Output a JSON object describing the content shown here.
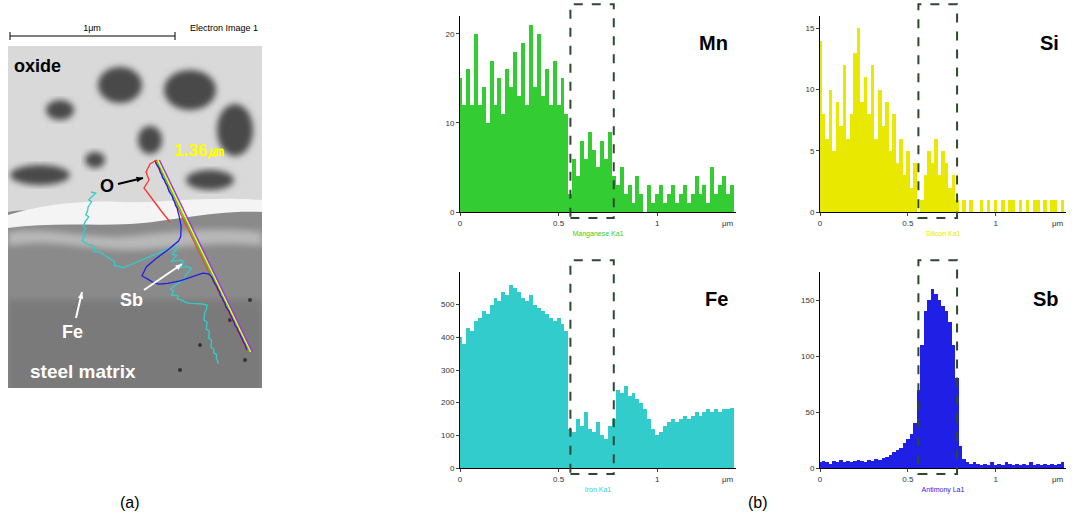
{
  "panels": [
    "(a)",
    "(b)"
  ],
  "micrograph": {
    "scale_bar": "1μm",
    "caption": "Electron Image 1",
    "scan_length": "1.36㎛",
    "labels": {
      "oxide": "oxide",
      "O": "O",
      "Fe": "Fe",
      "Sb": "Sb",
      "matrix": "steel matrix"
    }
  },
  "chart_data": [
    {
      "type": "bar",
      "label": "Mn",
      "color": "#33cc33",
      "xlabel": "Manganese Ka1",
      "x_unit": "μm",
      "x": [
        0,
        0.02,
        0.04,
        0.06,
        0.08,
        0.1,
        0.12,
        0.14,
        0.16,
        0.18,
        0.2,
        0.22,
        0.24,
        0.26,
        0.28,
        0.3,
        0.32,
        0.34,
        0.36,
        0.38,
        0.4,
        0.42,
        0.44,
        0.46,
        0.48,
        0.5,
        0.52,
        0.54,
        0.56,
        0.58,
        0.6,
        0.62,
        0.64,
        0.66,
        0.68,
        0.7,
        0.72,
        0.74,
        0.76,
        0.78,
        0.8,
        0.82,
        0.84,
        0.86,
        0.88,
        0.9,
        0.92,
        0.94,
        0.96,
        0.98,
        1,
        1.02,
        1.04,
        1.06,
        1.08,
        1.1,
        1.12,
        1.14,
        1.16,
        1.18,
        1.2,
        1.22,
        1.24,
        1.26,
        1.28,
        1.3,
        1.32,
        1.34,
        1.36,
        1.38
      ],
      "values": [
        15,
        12,
        16,
        12,
        20,
        12,
        14,
        10,
        17,
        12,
        15,
        11,
        16,
        14,
        18,
        13,
        19,
        12,
        21,
        14,
        20,
        13,
        16,
        12,
        17,
        12,
        15,
        11,
        2,
        6,
        4,
        8,
        6,
        9,
        7,
        5,
        8,
        6,
        9,
        4,
        3,
        5,
        2,
        3,
        1,
        4,
        2,
        0,
        3,
        1,
        2,
        3,
        1,
        2,
        3,
        1,
        2,
        3,
        1,
        2,
        4,
        2,
        3,
        1,
        5,
        2,
        3,
        4,
        2,
        3
      ],
      "xlim": [
        0,
        1.4
      ],
      "xticks": [
        0,
        0.5,
        1
      ],
      "ylim": [
        0,
        22
      ],
      "yticks": [
        0,
        10,
        20
      ],
      "highlight_x": [
        0.56,
        0.78
      ]
    },
    {
      "type": "bar",
      "label": "Si",
      "color": "#e8e800",
      "xlabel": "Silicon Ka1",
      "x_unit": "μm",
      "x": [
        0,
        0.02,
        0.04,
        0.06,
        0.08,
        0.1,
        0.12,
        0.14,
        0.16,
        0.18,
        0.2,
        0.22,
        0.24,
        0.26,
        0.28,
        0.3,
        0.32,
        0.34,
        0.36,
        0.38,
        0.4,
        0.42,
        0.44,
        0.46,
        0.48,
        0.5,
        0.52,
        0.54,
        0.56,
        0.58,
        0.6,
        0.62,
        0.64,
        0.66,
        0.68,
        0.7,
        0.72,
        0.74,
        0.76,
        0.78,
        0.8,
        0.82,
        0.84,
        0.86,
        0.88,
        0.9,
        0.92,
        0.94,
        0.96,
        0.98,
        1,
        1.02,
        1.04,
        1.06,
        1.08,
        1.1,
        1.12,
        1.14,
        1.16,
        1.18,
        1.2,
        1.22,
        1.24,
        1.26,
        1.28,
        1.3,
        1.32,
        1.34,
        1.36,
        1.38
      ],
      "values": [
        14,
        8,
        6,
        10,
        5,
        9,
        7,
        12,
        6,
        8,
        13,
        15,
        9,
        11,
        8,
        12,
        6,
        10,
        7,
        9,
        5,
        8,
        4,
        6,
        3,
        5,
        2,
        4,
        0,
        1,
        3,
        5,
        4,
        6,
        3,
        5,
        4,
        2,
        3,
        1,
        0,
        1,
        0,
        1,
        0,
        0,
        1,
        0,
        1,
        0,
        1,
        0,
        1,
        0,
        1,
        1,
        0,
        1,
        0,
        1,
        0,
        1,
        1,
        0,
        1,
        0,
        1,
        1,
        0,
        1
      ],
      "xlim": [
        0,
        1.4
      ],
      "xticks": [
        0,
        0.5,
        1
      ],
      "ylim": [
        0,
        16
      ],
      "yticks": [
        0,
        5,
        10,
        15
      ],
      "highlight_x": [
        0.56,
        0.78
      ]
    },
    {
      "type": "bar",
      "label": "Fe",
      "color": "#33cccc",
      "xlabel": "Iron Ka1",
      "x_unit": "μm",
      "x": [
        0,
        0.02,
        0.04,
        0.06,
        0.08,
        0.1,
        0.12,
        0.14,
        0.16,
        0.18,
        0.2,
        0.22,
        0.24,
        0.26,
        0.28,
        0.3,
        0.32,
        0.34,
        0.36,
        0.38,
        0.4,
        0.42,
        0.44,
        0.46,
        0.48,
        0.5,
        0.52,
        0.54,
        0.56,
        0.58,
        0.6,
        0.62,
        0.64,
        0.66,
        0.68,
        0.7,
        0.72,
        0.74,
        0.76,
        0.78,
        0.8,
        0.82,
        0.84,
        0.86,
        0.88,
        0.9,
        0.92,
        0.94,
        0.96,
        0.98,
        1,
        1.02,
        1.04,
        1.06,
        1.08,
        1.1,
        1.12,
        1.14,
        1.16,
        1.18,
        1.2,
        1.22,
        1.24,
        1.26,
        1.28,
        1.3,
        1.32,
        1.34,
        1.36,
        1.38
      ],
      "values": [
        400,
        380,
        430,
        420,
        450,
        460,
        480,
        470,
        500,
        520,
        510,
        540,
        530,
        560,
        550,
        540,
        520,
        510,
        530,
        500,
        490,
        480,
        470,
        460,
        450,
        460,
        440,
        420,
        120,
        110,
        150,
        130,
        170,
        120,
        110,
        140,
        100,
        90,
        130,
        150,
        240,
        230,
        250,
        220,
        230,
        210,
        200,
        180,
        150,
        120,
        100,
        110,
        130,
        140,
        150,
        140,
        150,
        160,
        150,
        160,
        170,
        160,
        170,
        180,
        170,
        180,
        170,
        180,
        180,
        185
      ],
      "xlim": [
        0,
        1.4
      ],
      "xticks": [
        0,
        0.5,
        1
      ],
      "ylim": [
        0,
        600
      ],
      "yticks": [
        0,
        100,
        200,
        300,
        400,
        500
      ],
      "highlight_x": [
        0.56,
        0.78
      ]
    },
    {
      "type": "bar",
      "label": "Sb",
      "color": "#1f1fe6",
      "xlabel": "Antimony La1",
      "x_unit": "μm",
      "x": [
        0,
        0.02,
        0.04,
        0.06,
        0.08,
        0.1,
        0.12,
        0.14,
        0.16,
        0.18,
        0.2,
        0.22,
        0.24,
        0.26,
        0.28,
        0.3,
        0.32,
        0.34,
        0.36,
        0.38,
        0.4,
        0.42,
        0.44,
        0.46,
        0.48,
        0.5,
        0.52,
        0.54,
        0.56,
        0.58,
        0.6,
        0.62,
        0.64,
        0.66,
        0.68,
        0.7,
        0.72,
        0.74,
        0.76,
        0.78,
        0.8,
        0.82,
        0.84,
        0.86,
        0.88,
        0.9,
        0.92,
        0.94,
        0.96,
        0.98,
        1,
        1.02,
        1.04,
        1.06,
        1.08,
        1.1,
        1.12,
        1.14,
        1.16,
        1.18,
        1.2,
        1.22,
        1.24,
        1.26,
        1.28,
        1.3,
        1.32,
        1.34,
        1.36,
        1.38
      ],
      "values": [
        5,
        6,
        5,
        4,
        6,
        5,
        7,
        5,
        6,
        5,
        6,
        7,
        6,
        5,
        7,
        6,
        8,
        7,
        9,
        10,
        12,
        14,
        16,
        18,
        22,
        26,
        30,
        40,
        70,
        110,
        140,
        150,
        160,
        155,
        150,
        145,
        140,
        130,
        110,
        80,
        20,
        8,
        5,
        4,
        5,
        4,
        3,
        4,
        3,
        5,
        3,
        4,
        3,
        5,
        4,
        3,
        4,
        3,
        4,
        3,
        5,
        3,
        4,
        3,
        4,
        3,
        4,
        3,
        4,
        5
      ],
      "xlim": [
        0,
        1.4
      ],
      "xticks": [
        0,
        0.5,
        1
      ],
      "ylim": [
        0,
        175
      ],
      "yticks": [
        0,
        50,
        100,
        150
      ],
      "highlight_x": [
        0.56,
        0.78
      ]
    }
  ]
}
